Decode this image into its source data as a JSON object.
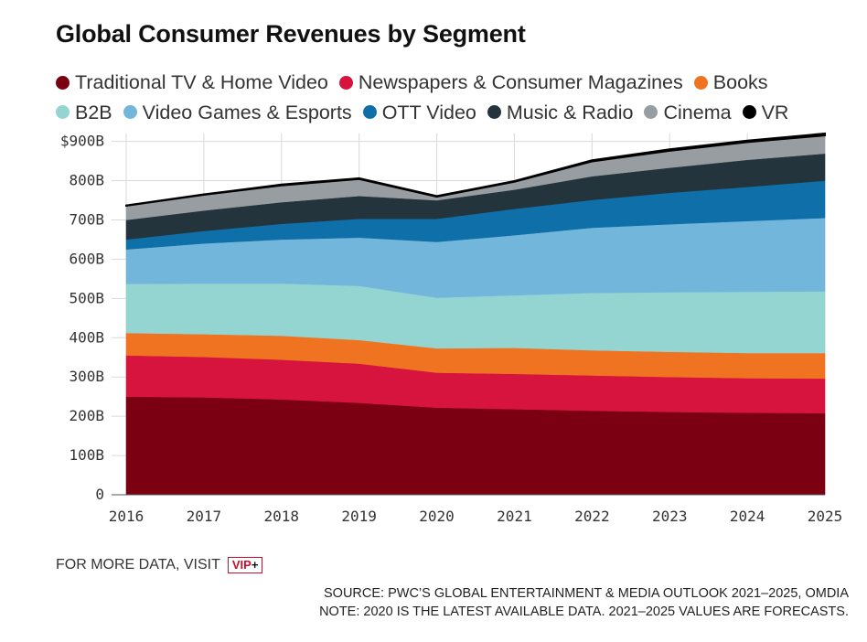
{
  "header": {
    "title": "Global Consumer Revenues by Segment"
  },
  "footer": {
    "visit_label": "FOR MORE DATA, VISIT",
    "vip_text": "VIP",
    "vip_plus": "+",
    "source": "SOURCE: PWC’S GLOBAL ENTERTAINMENT & MEDIA OUTLOOK 2021–2025, OMDIA",
    "note": "NOTE: 2020 IS THE LATEST AVAILABLE DATA. 2021–2025 VALUES ARE FORECASTS."
  },
  "chart_data": {
    "type": "area",
    "stacked": true,
    "title": "Global Consumer Revenues by Segment",
    "x": [
      "2016",
      "2017",
      "2018",
      "2019",
      "2020",
      "2021",
      "2022",
      "2023",
      "2024",
      "2025"
    ],
    "y_tick_labels": [
      "0",
      "100B",
      "200B",
      "300B",
      "400B",
      "500B",
      "600B",
      "700B",
      "800B",
      "$900B"
    ],
    "y_tick_values": [
      0,
      100,
      200,
      300,
      400,
      500,
      600,
      700,
      800,
      900
    ],
    "ylim": [
      0,
      920
    ],
    "grid": true,
    "legend_position": "top",
    "series": [
      {
        "name": "Traditional TV & Home Video",
        "color": "#7b0011",
        "values": [
          250,
          248,
          243,
          234,
          222,
          218,
          214,
          211,
          209,
          208
        ]
      },
      {
        "name": "Newspapers & Consumer Magazines",
        "color": "#d7143e",
        "values": [
          105,
          103,
          101,
          100,
          89,
          90,
          90,
          89,
          88,
          88
        ]
      },
      {
        "name": "Books",
        "color": "#f07322",
        "values": [
          57,
          58,
          61,
          60,
          62,
          66,
          64,
          64,
          64,
          65
        ]
      },
      {
        "name": "B2B",
        "color": "#94d5d1",
        "values": [
          125,
          129,
          133,
          138,
          129,
          134,
          146,
          152,
          156,
          157
        ]
      },
      {
        "name": "Video Games & Esports",
        "color": "#73b6dc",
        "values": [
          88,
          102,
          112,
          123,
          142,
          153,
          166,
          173,
          180,
          187
        ]
      },
      {
        "name": "OTT Video",
        "color": "#0f6fa8",
        "values": [
          25,
          32,
          40,
          48,
          59,
          67,
          71,
          80,
          87,
          95
        ]
      },
      {
        "name": "Music & Radio",
        "color": "#23343c",
        "values": [
          50,
          52,
          55,
          58,
          47,
          49,
          60,
          64,
          69,
          69
        ]
      },
      {
        "name": "Cinema",
        "color": "#979da1",
        "values": [
          36,
          40,
          43,
          43,
          9,
          20,
          38,
          43,
          45,
          46
        ]
      },
      {
        "name": "VR",
        "color": "#000000",
        "values": [
          1,
          1,
          2,
          2,
          2,
          2,
          3,
          4,
          4,
          5
        ]
      }
    ]
  }
}
